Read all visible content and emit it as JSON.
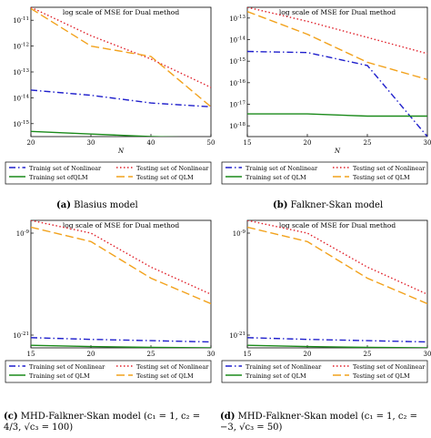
{
  "chart_data": [
    {
      "type": "line",
      "title": "log scale of MSE for Dual method",
      "xlabel": "N",
      "ylabel": "",
      "yscale": "log",
      "xlim": [
        20,
        50
      ],
      "ylim_log10": [
        -15.5,
        -10.5
      ],
      "xticks": [
        "20",
        "30",
        "40",
        "50"
      ],
      "yticks": [
        {
          "exp": -11,
          "label": "10",
          "sup": "-11"
        },
        {
          "exp": -12,
          "label": "10",
          "sup": "-12"
        },
        {
          "exp": -13,
          "label": "10",
          "sup": "-13"
        },
        {
          "exp": -14,
          "label": "10",
          "sup": "-14"
        },
        {
          "exp": -15,
          "label": "10",
          "sup": "-15"
        }
      ],
      "series": [
        {
          "name": "Trainig set of Nonlinear",
          "style": "dashdot",
          "color": "#1f1fcc",
          "x": [
            20,
            30,
            40,
            50
          ],
          "log10_y": [
            -13.7,
            -13.9,
            -14.2,
            -14.35
          ]
        },
        {
          "name": "Testing set of Nonlinear",
          "style": "dotted",
          "color": "#e0202a",
          "x": [
            20,
            30,
            40,
            50
          ],
          "log10_y": [
            -10.5,
            -11.6,
            -12.5,
            -13.6
          ]
        },
        {
          "name": "Training set ofQLM",
          "style": "solid",
          "color": "#1a8a1a",
          "x": [
            20,
            30,
            40,
            50
          ],
          "log10_y": [
            -15.3,
            -15.4,
            -15.5,
            -15.55
          ]
        },
        {
          "name": "Testing set of QLM",
          "style": "dashed",
          "color": "#f2a21c",
          "x": [
            20,
            30,
            40,
            50
          ],
          "log10_y": [
            -10.55,
            -12.0,
            -12.4,
            -14.35
          ]
        }
      ],
      "caption_tag": "(a)",
      "caption_text": "Blasius model"
    },
    {
      "type": "line",
      "title": "log scale of MSE for Dual method",
      "xlabel": "N",
      "ylabel": "",
      "yscale": "log",
      "xlim": [
        15,
        30
      ],
      "ylim_log10": [
        -18.5,
        -12.5
      ],
      "xticks": [
        "15",
        "20",
        "25",
        "30"
      ],
      "yticks": [
        {
          "exp": -13,
          "label": "10",
          "sup": "-13"
        },
        {
          "exp": -14,
          "label": "10",
          "sup": "-14"
        },
        {
          "exp": -15,
          "label": "10",
          "sup": "-15"
        },
        {
          "exp": -16,
          "label": "10",
          "sup": "-16"
        },
        {
          "exp": -17,
          "label": "10",
          "sup": "-17"
        },
        {
          "exp": -18,
          "label": "10",
          "sup": "-18"
        }
      ],
      "series": [
        {
          "name": "Trainig set of Nonlinear",
          "style": "dashdot",
          "color": "#1f1fcc",
          "x": [
            15,
            20,
            25,
            30
          ],
          "log10_y": [
            -14.55,
            -14.6,
            -15.2,
            -18.5
          ]
        },
        {
          "name": "Testing set of Nonlinear",
          "style": "dotted",
          "color": "#e0202a",
          "x": [
            15,
            20,
            25,
            30
          ],
          "log10_y": [
            -12.5,
            -13.15,
            -13.9,
            -14.65
          ]
        },
        {
          "name": "Training set of QLM",
          "style": "solid",
          "color": "#1a8a1a",
          "x": [
            15,
            20,
            25,
            30
          ],
          "log10_y": [
            -17.45,
            -17.45,
            -17.55,
            -17.55
          ]
        },
        {
          "name": "Testing set of QLM",
          "style": "dashed",
          "color": "#f2a21c",
          "x": [
            15,
            20,
            25,
            30
          ],
          "log10_y": [
            -12.7,
            -13.75,
            -15.05,
            -15.85
          ]
        }
      ],
      "caption_tag": "(b)",
      "caption_text": "Falkner-Skan model"
    },
    {
      "type": "line",
      "title": "log scale of MSE for Dual method",
      "xlabel": "",
      "ylabel": "",
      "yscale": "log",
      "xlim": [
        15,
        30
      ],
      "ylim_log10": [
        -22.5,
        -7.5
      ],
      "xticks": [
        "15",
        "20",
        "25",
        "30"
      ],
      "yticks": [
        {
          "exp": -9,
          "label": "10",
          "sup": "-9"
        },
        {
          "exp": -21,
          "label": "10",
          "sup": "-21"
        }
      ],
      "series": [
        {
          "name": "Training set of Nonlinear",
          "style": "dashdot",
          "color": "#1f1fcc",
          "x": [
            15,
            20,
            25,
            30
          ],
          "log10_y": [
            -21.3,
            -21.5,
            -21.65,
            -21.8
          ]
        },
        {
          "name": "Testing set of Nonlinear",
          "style": "dotted",
          "color": "#e0202a",
          "x": [
            15,
            20,
            25,
            30
          ],
          "log10_y": [
            -7.5,
            -9.0,
            -13.0,
            -16.2
          ]
        },
        {
          "name": "Training set of QLM",
          "style": "solid",
          "color": "#1a8a1a",
          "x": [
            15,
            20,
            25,
            30
          ],
          "log10_y": [
            -22.2,
            -22.35,
            -22.45,
            -22.5
          ]
        },
        {
          "name": "Testing set of QLM",
          "style": "dashed",
          "color": "#f2a21c",
          "x": [
            15,
            20,
            25,
            30
          ],
          "log10_y": [
            -8.3,
            -10.0,
            -14.3,
            -17.3
          ]
        }
      ],
      "caption_tag": "(c)",
      "caption_text": "MHD-Falkner-Skan model (c₁ = 1, c₂ = 4/3, √c₃ = 100)"
    },
    {
      "type": "line",
      "title": "log scale of MSE for Dual method",
      "xlabel": "",
      "ylabel": "",
      "yscale": "log",
      "xlim": [
        15,
        30
      ],
      "ylim_log10": [
        -22.5,
        -7.5
      ],
      "xticks": [
        "15",
        "20",
        "25",
        "30"
      ],
      "yticks": [
        {
          "exp": -9,
          "label": "10",
          "sup": "-9"
        },
        {
          "exp": -21,
          "label": "10",
          "sup": "-21"
        }
      ],
      "series": [
        {
          "name": "Training set of Nonlinear",
          "style": "dashdot",
          "color": "#1f1fcc",
          "x": [
            15,
            20,
            25,
            30
          ],
          "log10_y": [
            -21.3,
            -21.5,
            -21.65,
            -21.8
          ]
        },
        {
          "name": "Testing set of Nonlinear",
          "style": "dotted",
          "color": "#e0202a",
          "x": [
            15,
            20,
            25,
            30
          ],
          "log10_y": [
            -7.5,
            -9.0,
            -13.0,
            -16.2
          ]
        },
        {
          "name": "Training set of QLM",
          "style": "solid",
          "color": "#1a8a1a",
          "x": [
            15,
            20,
            25,
            30
          ],
          "log10_y": [
            -22.2,
            -22.35,
            -22.45,
            -22.5
          ]
        },
        {
          "name": "Testing set of QLM",
          "style": "dashed",
          "color": "#f2a21c",
          "x": [
            15,
            20,
            25,
            30
          ],
          "log10_y": [
            -8.3,
            -10.0,
            -14.3,
            -17.3
          ]
        }
      ],
      "caption_tag": "(d)",
      "caption_text": "MHD-Falkner-Skan model (c₁ = 1, c₂ = −3, √c₃ = 50)"
    }
  ]
}
